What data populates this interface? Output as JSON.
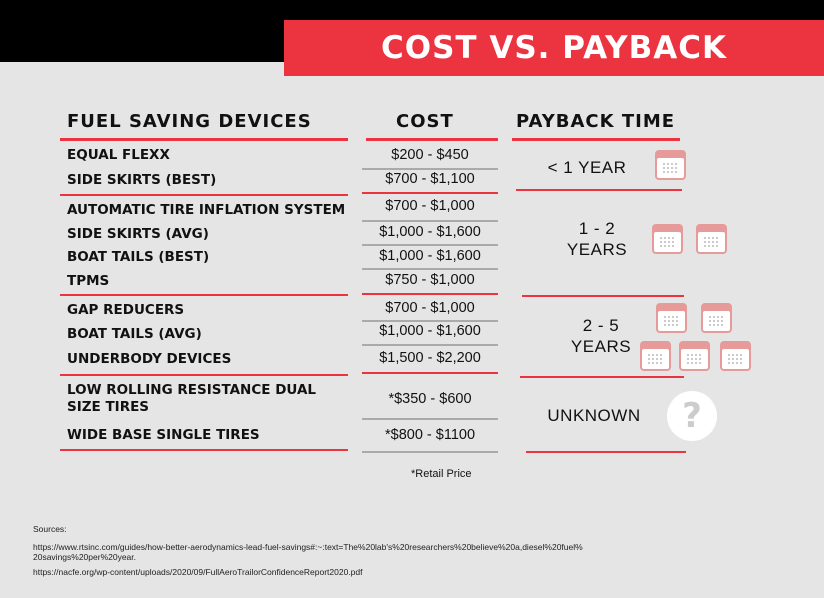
{
  "title": "COST VS. PAYBACK",
  "headers": {
    "devices": "FUEL SAVING DEVICES",
    "cost": "COST",
    "payback": "PAYBACK TIME"
  },
  "rows": [
    {
      "device": "EQUAL FLEXX",
      "cost": "$200 - $450"
    },
    {
      "device": "SIDE SKIRTS (BEST)",
      "cost": "$700 - $1,100"
    },
    {
      "device": "AUTOMATIC TIRE INFLATION SYSTEM",
      "cost": "$700 - $1,000"
    },
    {
      "device": "SIDE SKIRTS (AVG)",
      "cost": "$1,000 - $1,600"
    },
    {
      "device": "BOAT TAILS (BEST)",
      "cost": "$1,000 - $1,600"
    },
    {
      "device": "TPMS",
      "cost": "$750 - $1,000"
    },
    {
      "device": "GAP REDUCERS",
      "cost": "$700 - $1,000"
    },
    {
      "device": "BOAT TAILS (AVG)",
      "cost": "$1,000 - $1,600"
    },
    {
      "device": "UNDERBODY DEVICES",
      "cost": "$1,500 - $2,200"
    },
    {
      "device": "LOW ROLLING RESISTANCE DUAL SIZE TIRES",
      "cost": "*$350 - $600"
    },
    {
      "device": "WIDE BASE SINGLE TIRES",
      "cost": "*$800 - $1100"
    }
  ],
  "payback": [
    {
      "label_line1": "< 1 YEAR",
      "label_line2": "",
      "icon": "calendar-icon",
      "icon_count": 1
    },
    {
      "label_line1": "1 - 2",
      "label_line2": "YEARS",
      "icon": "calendar-icon",
      "icon_count": 2
    },
    {
      "label_line1": "2 - 5",
      "label_line2": "YEARS",
      "icon": "calendar-icon",
      "icon_count": 5
    },
    {
      "label_line1": "UNKNOWN",
      "label_line2": "",
      "icon": "question-icon",
      "icon_count": 1
    }
  ],
  "note": "*Retail Price",
  "sources": {
    "label": "Sources:",
    "line1": "https://www.rtsinc.com/guides/how-better-aerodynamics-lead-fuel-savings#:~:text=The%20lab's%20researchers%20believe%20a,diesel%20fuel%",
    "line2": "20savings%20per%20year.",
    "line3": "https://nacfe.org/wp-content/uploads/2020/09/FullAeroTrailorConfidenceReport2020.pdf"
  },
  "colors": {
    "accent": "#ec3340",
    "background": "#e5e5e5",
    "topbar": "#000000",
    "calendar": "#e79a9a"
  }
}
